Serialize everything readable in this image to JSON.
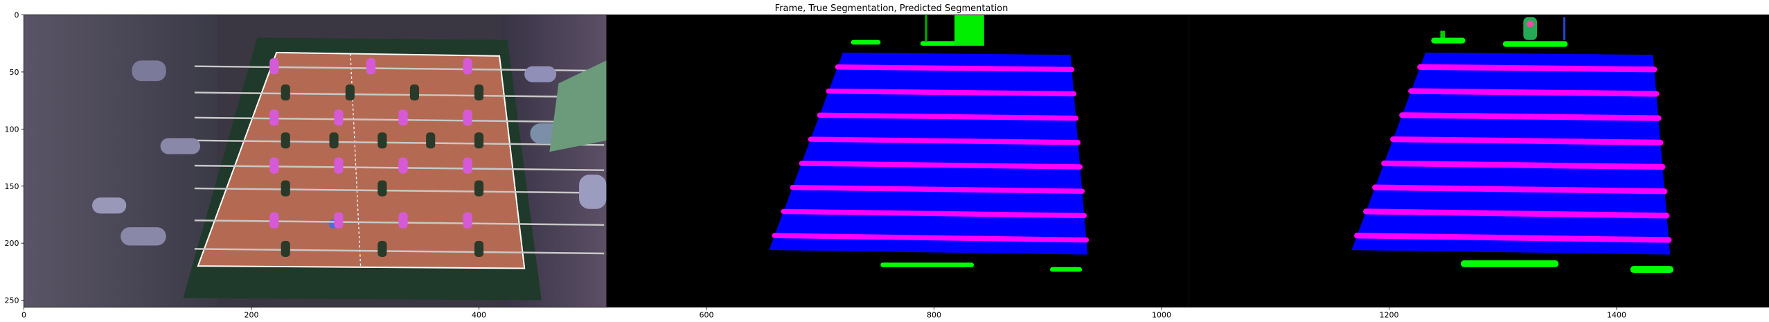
{
  "chart_data": {
    "type": "image",
    "title": "Frame, True Segmentation, Predicted Segmentation",
    "xlabel": "",
    "ylabel": "",
    "xlim": [
      0,
      1536
    ],
    "ylim": [
      256,
      0
    ],
    "x_ticks": [
      0,
      200,
      400,
      600,
      800,
      1000,
      1200,
      1400
    ],
    "y_ticks": [
      0,
      50,
      100,
      150,
      200,
      250
    ],
    "grid": false,
    "panels": [
      "Frame",
      "True Segmentation",
      "Predicted Segmentation"
    ],
    "panel_width": 512,
    "panel_height": 256,
    "segmentation_classes": [
      {
        "class": "table",
        "color": "#0000ff"
      },
      {
        "class": "rods",
        "color": "#ff00ff"
      },
      {
        "class": "players",
        "color": "#00ff00"
      },
      {
        "class": "background",
        "color": "#000000"
      }
    ],
    "table_corners": [
      [
        720,
        33
      ],
      [
        920,
        35
      ],
      [
        655,
        206
      ],
      [
        935,
        210
      ]
    ]
  },
  "colors": {
    "table": "#0000ff",
    "rod": "#ff00ff",
    "player": "#00ff00",
    "background": "#000000",
    "axis": "#000000",
    "field": "#b46a52",
    "frame_dark": "#1f3a2a"
  }
}
